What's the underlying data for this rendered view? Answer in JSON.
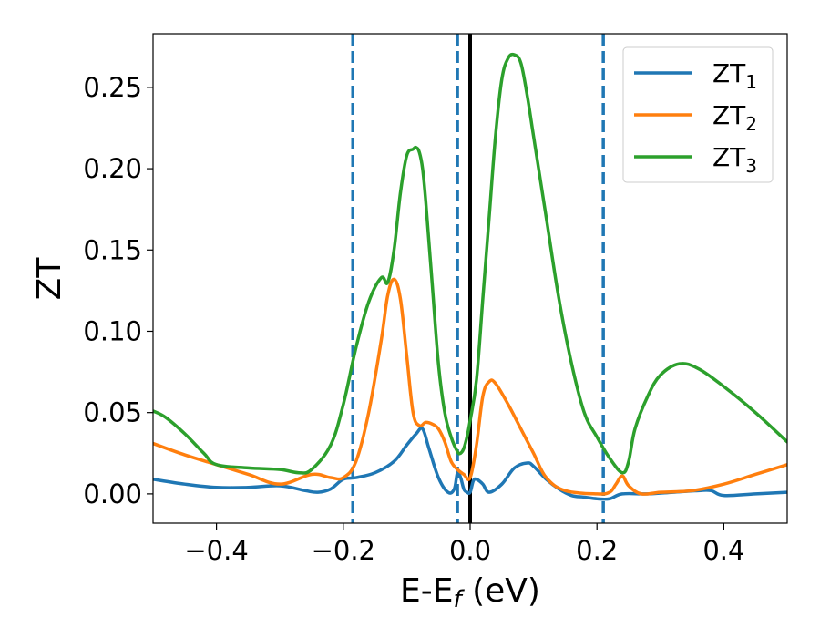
{
  "chart_data": {
    "type": "line",
    "xlabel": "E-E",
    "xlabel_sub": "f",
    "xlabel_unit": " (eV)",
    "ylabel": "ZT",
    "xlim": [
      -0.5,
      0.5
    ],
    "ylim": [
      -0.018,
      0.283
    ],
    "xticks": [
      -0.4,
      -0.2,
      0.0,
      0.2,
      0.4
    ],
    "xtick_labels": [
      "−0.4",
      "−0.2",
      "0.0",
      "0.2",
      "0.4"
    ],
    "yticks": [
      0.0,
      0.05,
      0.1,
      0.15,
      0.2,
      0.25
    ],
    "ytick_labels": [
      "0.00",
      "0.05",
      "0.10",
      "0.15",
      "0.20",
      "0.25"
    ],
    "grid": false,
    "legend": "top-right",
    "vlines": [
      {
        "x": -0.185,
        "style": "dashed",
        "color": "#1f77b4"
      },
      {
        "x": -0.02,
        "style": "dashed",
        "color": "#1f77b4"
      },
      {
        "x": 0.21,
        "style": "dashed",
        "color": "#1f77b4"
      },
      {
        "x": 0.0,
        "style": "solid",
        "color": "#000000"
      }
    ],
    "series": [
      {
        "name": "ZT",
        "sub": "1",
        "color": "#1f77b4",
        "x": [
          -0.5,
          -0.45,
          -0.4,
          -0.35,
          -0.3,
          -0.26,
          -0.24,
          -0.22,
          -0.2,
          -0.18,
          -0.15,
          -0.12,
          -0.1,
          -0.085,
          -0.075,
          -0.065,
          -0.05,
          -0.035,
          -0.025,
          -0.02,
          -0.015,
          -0.01,
          -0.005,
          0.0,
          0.005,
          0.01,
          0.02,
          0.03,
          0.05,
          0.07,
          0.09,
          0.1,
          0.12,
          0.14,
          0.16,
          0.18,
          0.2,
          0.22,
          0.24,
          0.28,
          0.32,
          0.36,
          0.38,
          0.4,
          0.45,
          0.5
        ],
        "y": [
          0.009,
          0.006,
          0.004,
          0.004,
          0.005,
          0.002,
          0.001,
          0.003,
          0.009,
          0.01,
          0.013,
          0.02,
          0.03,
          0.037,
          0.04,
          0.028,
          0.01,
          0.001,
          0.003,
          0.013,
          0.01,
          0.003,
          0.001,
          0.001,
          0.008,
          0.009,
          0.006,
          0.001,
          0.006,
          0.016,
          0.019,
          0.017,
          0.009,
          0.003,
          -0.001,
          -0.002,
          -0.003,
          -0.003,
          0.0,
          0.0,
          0.001,
          0.002,
          0.002,
          -0.001,
          0.0,
          0.001
        ]
      },
      {
        "name": "ZT",
        "sub": "2",
        "color": "#ff7f0e",
        "x": [
          -0.5,
          -0.45,
          -0.4,
          -0.35,
          -0.3,
          -0.25,
          -0.22,
          -0.2,
          -0.18,
          -0.16,
          -0.14,
          -0.13,
          -0.12,
          -0.11,
          -0.1,
          -0.09,
          -0.08,
          -0.07,
          -0.06,
          -0.05,
          -0.04,
          -0.03,
          -0.02,
          -0.01,
          0.0,
          0.01,
          0.02,
          0.03,
          0.04,
          0.06,
          0.08,
          0.1,
          0.12,
          0.15,
          0.2,
          0.22,
          0.23,
          0.24,
          0.25,
          0.27,
          0.3,
          0.35,
          0.4,
          0.45,
          0.5
        ],
        "y": [
          0.031,
          0.024,
          0.018,
          0.012,
          0.006,
          0.012,
          0.01,
          0.01,
          0.02,
          0.05,
          0.095,
          0.122,
          0.132,
          0.12,
          0.085,
          0.05,
          0.042,
          0.044,
          0.043,
          0.04,
          0.032,
          0.02,
          0.015,
          0.012,
          0.01,
          0.03,
          0.06,
          0.069,
          0.068,
          0.055,
          0.04,
          0.025,
          0.01,
          0.002,
          0.0,
          0.001,
          0.006,
          0.011,
          0.005,
          0.0,
          0.001,
          0.002,
          0.006,
          0.012,
          0.018
        ]
      },
      {
        "name": "ZT",
        "sub": "3",
        "color": "#2ca02c",
        "x": [
          -0.5,
          -0.48,
          -0.45,
          -0.42,
          -0.4,
          -0.35,
          -0.3,
          -0.27,
          -0.25,
          -0.22,
          -0.2,
          -0.18,
          -0.16,
          -0.14,
          -0.13,
          -0.12,
          -0.11,
          -0.1,
          -0.09,
          -0.085,
          -0.08,
          -0.075,
          -0.07,
          -0.06,
          -0.05,
          -0.04,
          -0.03,
          -0.02,
          -0.015,
          -0.01,
          -0.005,
          0.0,
          0.01,
          0.02,
          0.03,
          0.04,
          0.05,
          0.06,
          0.07,
          0.08,
          0.09,
          0.1,
          0.12,
          0.14,
          0.16,
          0.18,
          0.2,
          0.22,
          0.24,
          0.25,
          0.26,
          0.28,
          0.3,
          0.33,
          0.36,
          0.4,
          0.45,
          0.5
        ],
        "y": [
          0.051,
          0.047,
          0.037,
          0.025,
          0.018,
          0.016,
          0.015,
          0.013,
          0.015,
          0.03,
          0.055,
          0.09,
          0.118,
          0.133,
          0.13,
          0.15,
          0.185,
          0.208,
          0.212,
          0.213,
          0.21,
          0.2,
          0.18,
          0.13,
          0.08,
          0.05,
          0.035,
          0.026,
          0.025,
          0.028,
          0.035,
          0.045,
          0.07,
          0.12,
          0.17,
          0.22,
          0.255,
          0.268,
          0.27,
          0.265,
          0.245,
          0.22,
          0.17,
          0.12,
          0.08,
          0.05,
          0.035,
          0.022,
          0.013,
          0.02,
          0.04,
          0.06,
          0.073,
          0.08,
          0.077,
          0.066,
          0.05,
          0.032
        ]
      }
    ]
  }
}
